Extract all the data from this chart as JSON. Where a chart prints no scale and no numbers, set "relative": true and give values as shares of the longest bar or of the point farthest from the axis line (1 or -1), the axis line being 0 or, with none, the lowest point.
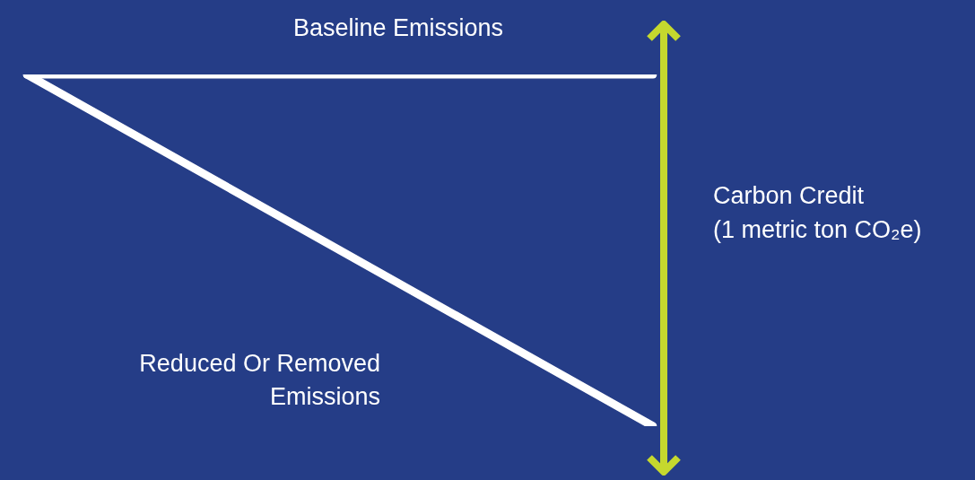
{
  "chart_data": {
    "type": "line",
    "relative": true,
    "categories": [
      null,
      null
    ],
    "marker": "none",
    "legend": false,
    "series": [
      {
        "name": "Baseline Emissions",
        "color": "#ffffff",
        "values": [
          1,
          1
        ]
      },
      {
        "name": "Reduced Or Removed Emissions",
        "color": "#ffffff",
        "values": [
          1,
          0
        ]
      }
    ],
    "annotations": [
      "Carbon Credit",
      "(1 metric ton CO₂e)"
    ]
  }
}
